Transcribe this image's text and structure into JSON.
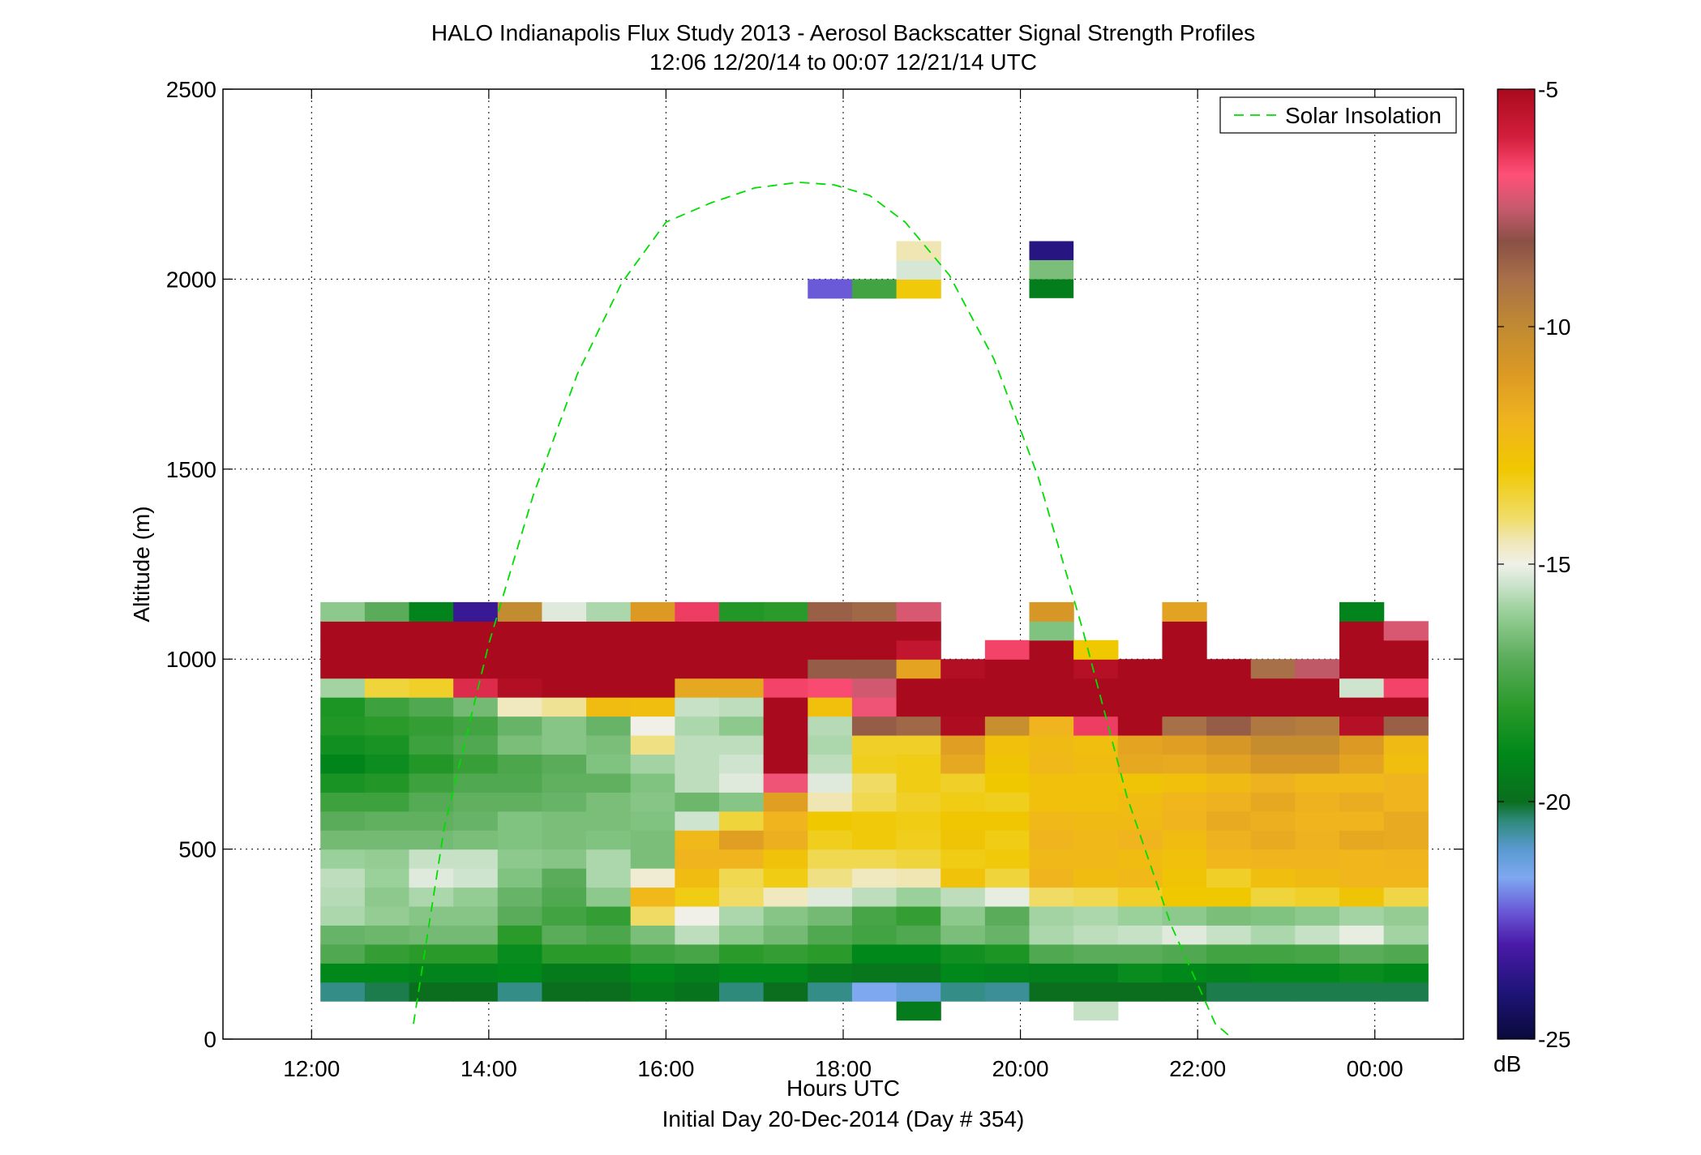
{
  "chart_data": {
    "type": "heatmap",
    "title": "HALO Indianapolis Flux Study 2013 - Aerosol Backscatter Signal Strength Profiles",
    "subtitle": "12:06 12/20/14 to 00:07 12/21/14  UTC",
    "xlabel": "Hours UTC",
    "xlabel2": "Initial Day 20-Dec-2014 (Day # 354)",
    "ylabel": "Altitude (m)",
    "xlim": [
      11.0,
      25.0
    ],
    "ylim": [
      0,
      2500
    ],
    "x_ticks": [
      12,
      14,
      16,
      18,
      20,
      22,
      24
    ],
    "x_tick_labels": [
      "12:00",
      "14:00",
      "16:00",
      "18:00",
      "20:00",
      "22:00",
      "00:00"
    ],
    "y_ticks": [
      0,
      500,
      1000,
      1500,
      2000,
      2500
    ],
    "y_tick_labels": [
      "0",
      "500",
      "1000",
      "1500",
      "2000",
      "2500"
    ],
    "grid": true,
    "legend": {
      "position": "top-right",
      "entries": [
        "Solar Insolation"
      ]
    },
    "colorbar": {
      "label": "dB",
      "range": [
        -25,
        -5
      ],
      "ticks": [
        -5,
        -10,
        -15,
        -20,
        -25
      ],
      "tick_labels": [
        "-5",
        "-10",
        "-15",
        "-20",
        "-25"
      ],
      "stops": [
        [
          -25,
          "#0a0a3c"
        ],
        [
          -24,
          "#1e1478"
        ],
        [
          -23,
          "#4a1aa8"
        ],
        [
          -22.3,
          "#6a5ad8"
        ],
        [
          -21.6,
          "#7ea8f0"
        ],
        [
          -21,
          "#5a9ad0"
        ],
        [
          -20.4,
          "#2e8a7a"
        ],
        [
          -20,
          "#0a6e1e"
        ],
        [
          -19,
          "#00881a"
        ],
        [
          -18,
          "#2a9a2a"
        ],
        [
          -17,
          "#5aac5a"
        ],
        [
          -16,
          "#9ad09a"
        ],
        [
          -15.4,
          "#cfe4cf"
        ],
        [
          -15,
          "#f0f0e8"
        ],
        [
          -14.5,
          "#f0e6b4"
        ],
        [
          -14,
          "#f0dc64"
        ],
        [
          -13,
          "#f0c800"
        ],
        [
          -12,
          "#f0b41e"
        ],
        [
          -11,
          "#dc9a24"
        ],
        [
          -10,
          "#c08a32"
        ],
        [
          -9,
          "#a87048"
        ],
        [
          -8.2,
          "#8a5046"
        ],
        [
          -7.5,
          "#c85a6e"
        ],
        [
          -6.8,
          "#ff5078"
        ],
        [
          -6,
          "#d21e3c"
        ],
        [
          -5,
          "#aa0a1e"
        ]
      ]
    },
    "cell_size": {
      "hours": 0.5,
      "meters": 50
    },
    "time_hours_utc": [
      12.1,
      12.6,
      13.1,
      13.6,
      14.1,
      14.6,
      15.1,
      15.6,
      16.1,
      16.6,
      17.1,
      17.6,
      18.1,
      18.6,
      19.1,
      19.6,
      20.1,
      20.6,
      21.1,
      21.6,
      22.1,
      22.6,
      23.1,
      23.6,
      24.1
    ],
    "altitude_bins_bottom_m": [
      50,
      100,
      150,
      200,
      250,
      300,
      350,
      400,
      450,
      500,
      550,
      600,
      650,
      700,
      750,
      800,
      850,
      900,
      950,
      1000,
      1050,
      1100,
      1950,
      2000,
      2050
    ],
    "signal_db": [
      [
        null,
        null,
        null,
        null,
        null,
        null,
        null,
        null,
        null,
        null,
        null,
        null,
        null,
        -19.5,
        null,
        null,
        null,
        -15.5,
        null,
        null,
        null,
        null,
        null,
        null,
        null
      ],
      [
        -20.5,
        -20.2,
        -20.0,
        -20.0,
        -20.5,
        -20.0,
        -20.0,
        -19.5,
        -19.8,
        -20.4,
        -20.0,
        -20.5,
        -21.6,
        -21.2,
        -20.5,
        -20.6,
        -20.0,
        -20.0,
        -20.0,
        -20.0,
        -20.2,
        -20.2,
        -20.2,
        -20.2,
        -20.2
      ],
      [
        -19.0,
        -19.0,
        -19.2,
        -19.2,
        -19.0,
        -19.5,
        -19.5,
        -19.0,
        -19.3,
        -19.0,
        -19.0,
        -19.5,
        -19.7,
        -19.7,
        -19.0,
        -19.2,
        -19.3,
        -19.3,
        -18.8,
        -19.0,
        -19.2,
        -19.0,
        -19.0,
        -18.8,
        -19.0
      ],
      [
        -17.2,
        -17.8,
        -18.0,
        -18.0,
        -18.8,
        -18.0,
        -18.0,
        -17.6,
        -17.4,
        -18.0,
        -17.8,
        -18.0,
        -19.0,
        -19.0,
        -18.6,
        -18.3,
        -17.2,
        -17.0,
        -17.0,
        -17.2,
        -17.5,
        -17.5,
        -17.4,
        -17.0,
        -17.2
      ],
      [
        -16.8,
        -16.7,
        -16.6,
        -16.6,
        -18.0,
        -17.0,
        -17.3,
        -16.5,
        -15.6,
        -16.2,
        -16.6,
        -17.2,
        -17.5,
        -17.2,
        -16.5,
        -16.8,
        -15.8,
        -15.6,
        -15.5,
        -15.2,
        -15.5,
        -15.8,
        -15.5,
        -15.1,
        -15.9
      ],
      [
        -15.8,
        -16.1,
        -16.3,
        -16.3,
        -17.0,
        -17.5,
        -17.8,
        -14.0,
        -15.0,
        -15.8,
        -16.3,
        -16.6,
        -17.4,
        -17.8,
        -16.2,
        -17.0,
        -15.9,
        -15.8,
        -16.0,
        -16.2,
        -16.5,
        -16.4,
        -16.2,
        -15.9,
        -16.1
      ],
      [
        -15.7,
        -16.2,
        -15.8,
        -16.1,
        -16.8,
        -17.2,
        -16.2,
        -12.2,
        -13.2,
        -14.0,
        -14.6,
        -15.2,
        -15.6,
        -16.0,
        -15.6,
        -15.1,
        -14.0,
        -13.8,
        -13.4,
        -13.0,
        -13.0,
        -13.6,
        -13.4,
        -12.8,
        -13.7
      ],
      [
        -15.6,
        -16.0,
        -15.2,
        -15.4,
        -16.4,
        -17.0,
        -15.8,
        -14.8,
        -12.4,
        -13.8,
        -13.2,
        -14.2,
        -14.6,
        -14.5,
        -12.7,
        -13.6,
        -12.0,
        -12.4,
        -12.2,
        -12.8,
        -13.4,
        -12.5,
        -12.3,
        -12.1,
        -12.1
      ],
      [
        -16.0,
        -16.1,
        -15.5,
        -15.5,
        -16.2,
        -16.3,
        -15.8,
        -16.5,
        -12.0,
        -12.0,
        -12.7,
        -13.8,
        -13.8,
        -13.6,
        -13.2,
        -13.1,
        -12.2,
        -12.2,
        -12.4,
        -12.6,
        -12.1,
        -12.0,
        -12.0,
        -12.1,
        -12.0
      ],
      [
        -16.6,
        -16.6,
        -16.6,
        -16.5,
        -16.4,
        -16.5,
        -16.4,
        -16.5,
        -12.2,
        -11.2,
        -11.8,
        -13.3,
        -13.1,
        -13.3,
        -12.8,
        -13.2,
        -12.0,
        -12.2,
        -12.0,
        -12.4,
        -11.9,
        -11.6,
        -11.9,
        -11.5,
        -11.6
      ],
      [
        -17.0,
        -16.9,
        -16.9,
        -16.8,
        -16.4,
        -16.5,
        -16.5,
        -16.4,
        -15.4,
        -13.6,
        -12.0,
        -13.0,
        -13.1,
        -13.2,
        -12.9,
        -12.9,
        -12.2,
        -12.3,
        -12.3,
        -12.0,
        -11.6,
        -11.8,
        -12.0,
        -12.0,
        -11.6
      ],
      [
        -17.6,
        -17.6,
        -17.1,
        -16.9,
        -16.9,
        -16.8,
        -16.5,
        -16.3,
        -16.7,
        -16.3,
        -11.2,
        -14.5,
        -13.8,
        -13.4,
        -13.2,
        -13.3,
        -12.6,
        -12.6,
        -12.4,
        -12.1,
        -11.9,
        -11.5,
        -11.9,
        -11.7,
        -12.0
      ],
      [
        -18.4,
        -18.2,
        -17.6,
        -17.2,
        -17.2,
        -16.9,
        -16.9,
        -16.4,
        -15.6,
        -15.2,
        -7.0,
        -15.2,
        -14.0,
        -13.2,
        -13.4,
        -13.0,
        -12.6,
        -12.6,
        -12.8,
        -12.6,
        -12.3,
        -11.9,
        -12.2,
        -12.2,
        -12.0
      ],
      [
        -19.1,
        -18.7,
        -18.2,
        -17.7,
        -17.3,
        -17.0,
        -16.4,
        -15.9,
        -15.6,
        -15.4,
        -5.0,
        -15.6,
        -13.3,
        -13.2,
        -11.5,
        -12.8,
        -12.2,
        -12.4,
        -11.5,
        -11.6,
        -11.3,
        -10.8,
        -10.8,
        -11.4,
        -12.5
      ],
      [
        -18.6,
        -18.4,
        -17.6,
        -17.2,
        -16.5,
        -16.3,
        -16.5,
        -14.2,
        -15.6,
        -15.6,
        -5.0,
        -15.8,
        -13.4,
        -13.4,
        -11.2,
        -12.6,
        -12.3,
        -12.5,
        -11.4,
        -11.2,
        -10.8,
        -10.2,
        -10.2,
        -11.0,
        -12.3
      ],
      [
        -18.2,
        -18.0,
        -17.8,
        -17.5,
        -16.8,
        -16.3,
        -16.8,
        -15.0,
        -15.8,
        -16.2,
        -5.0,
        -15.7,
        -8.5,
        -8.8,
        -5.1,
        -10.3,
        -12.0,
        -6.5,
        -5.0,
        -9.0,
        -8.5,
        -9.3,
        -9.5,
        -5.3,
        -8.6
      ],
      [
        -18.3,
        -17.6,
        -17.2,
        -16.6,
        -14.6,
        -14.3,
        -12.4,
        -12.5,
        -15.5,
        -15.6,
        -5.0,
        -12.6,
        -7.0,
        -5.0,
        -5.0,
        -5.0,
        -5.0,
        -5.0,
        -5.0,
        -5.0,
        -5.0,
        -5.0,
        -5.0,
        -5.0,
        -5.0
      ],
      [
        -15.9,
        -13.6,
        -13.4,
        -6.2,
        -5.2,
        -5.0,
        -5.0,
        -5.0,
        -11.5,
        -11.5,
        -6.6,
        -6.7,
        -7.4,
        -5.0,
        -5.0,
        -5.0,
        -5.0,
        -5.0,
        -5.0,
        -5.0,
        -5.0,
        -5.0,
        -5.0,
        -15.4,
        -6.6
      ],
      [
        -5.0,
        -5.0,
        -5.0,
        -5.0,
        -5.0,
        -5.0,
        -5.0,
        -5.0,
        -5.0,
        -5.0,
        -5.0,
        -8.5,
        -8.5,
        -11.4,
        -5.2,
        -5.0,
        -5.0,
        -5.3,
        -5.0,
        -5.0,
        -5.0,
        -9.0,
        -7.6,
        -5.0,
        -5.0
      ],
      [
        -5.0,
        -5.0,
        -5.0,
        -5.0,
        -5.0,
        -5.0,
        -5.0,
        -5.0,
        -5.0,
        -5.0,
        -5.0,
        -5.0,
        -5.0,
        -5.6,
        null,
        -6.6,
        -5.0,
        -13.0,
        null,
        -5.0,
        null,
        null,
        null,
        -5.0,
        -5.0
      ],
      [
        -5.0,
        -5.0,
        -5.0,
        -5.0,
        -5.0,
        -5.0,
        -5.0,
        -5.0,
        -5.0,
        -5.0,
        -5.0,
        -5.0,
        -5.0,
        -5.0,
        null,
        null,
        -16.4,
        null,
        null,
        -5.0,
        null,
        null,
        null,
        -5.0,
        -7.3
      ],
      [
        -16.2,
        -17.0,
        -19.2,
        -23.4,
        -10.1,
        -15.2,
        -15.8,
        -11.0,
        -6.5,
        -18.2,
        -18.0,
        -8.6,
        -8.8,
        -7.3,
        null,
        null,
        -10.8,
        null,
        null,
        -11.3,
        null,
        null,
        null,
        -19.2,
        null
      ],
      [
        null,
        null,
        null,
        null,
        null,
        null,
        null,
        null,
        null,
        null,
        null,
        -22.3,
        -17.5,
        -13.1,
        null,
        null,
        null,
        null,
        null,
        null,
        null,
        null,
        null,
        null,
        null
      ],
      [
        null,
        null,
        null,
        null,
        null,
        null,
        null,
        null,
        null,
        null,
        null,
        null,
        null,
        -15.3,
        null,
        null,
        null,
        null,
        null,
        null,
        null,
        null,
        null,
        null,
        null
      ],
      [
        null,
        null,
        null,
        null,
        null,
        null,
        null,
        null,
        null,
        null,
        null,
        null,
        null,
        -14.5,
        null,
        null,
        null,
        null,
        null,
        null,
        null,
        null,
        null,
        null,
        null
      ]
    ],
    "isolated_cells": [
      {
        "time_hours_utc": 20.1,
        "altitude_bottom_m": 1950,
        "signal_db": -19.4
      },
      {
        "time_hours_utc": 20.1,
        "altitude_bottom_m": 2000,
        "signal_db": -16.5
      },
      {
        "time_hours_utc": 20.1,
        "altitude_bottom_m": 2050,
        "signal_db": -23.8
      }
    ],
    "series": [
      {
        "name": "Solar Insolation",
        "style": "dashed",
        "color": "#00dd00",
        "x": [
          13.15,
          13.5,
          14.0,
          14.5,
          15.0,
          15.5,
          16.0,
          16.5,
          17.0,
          17.5,
          17.9,
          18.3,
          18.7,
          19.2,
          19.7,
          20.2,
          20.7,
          21.2,
          21.7,
          22.2,
          22.4
        ],
        "y": [
          40,
          560,
          1040,
          1430,
          1750,
          1990,
          2150,
          2200,
          2240,
          2255,
          2248,
          2220,
          2150,
          2010,
          1790,
          1480,
          1080,
          640,
          300,
          40,
          0
        ]
      }
    ]
  }
}
